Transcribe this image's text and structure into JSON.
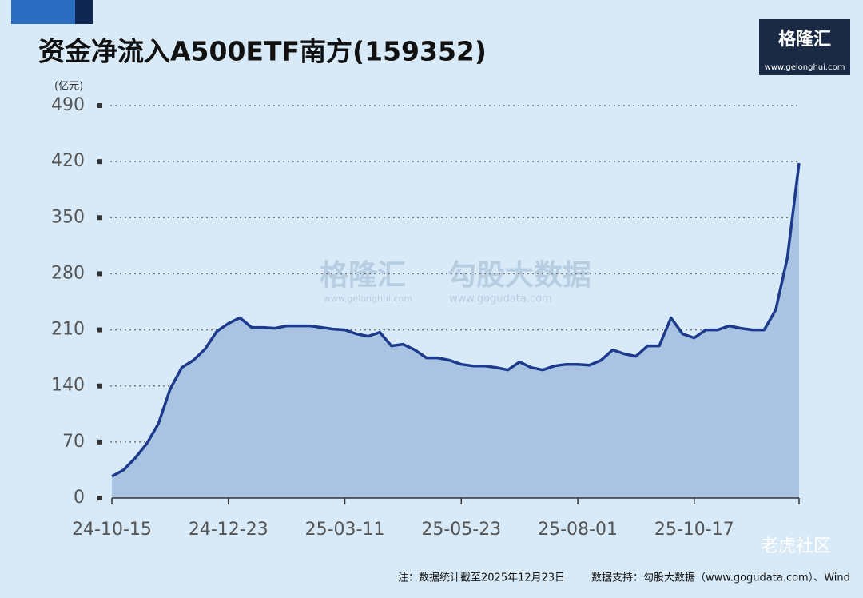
{
  "chart_data": {
    "type": "area",
    "title": "资金净流入A500ETF南方(159352)",
    "y_unit": "(亿元)",
    "categories": [
      "24-10-15",
      null,
      null,
      null,
      null,
      null,
      null,
      null,
      null,
      null,
      "24-12-23",
      null,
      null,
      null,
      null,
      null,
      null,
      null,
      null,
      null,
      "25-03-11",
      null,
      null,
      null,
      null,
      null,
      null,
      null,
      null,
      null,
      "25-05-23",
      null,
      null,
      null,
      null,
      null,
      null,
      null,
      null,
      null,
      "25-08-01",
      null,
      null,
      null,
      null,
      null,
      null,
      null,
      null,
      null,
      "25-10-17",
      null,
      null,
      null,
      null,
      null,
      null,
      null,
      null,
      null
    ],
    "values": [
      27,
      35,
      50,
      68,
      93,
      136,
      163,
      172,
      186,
      208,
      218,
      225,
      213,
      213,
      212,
      215,
      215,
      215,
      213,
      211,
      210,
      205,
      202,
      207,
      190,
      192,
      185,
      175,
      175,
      172,
      167,
      165,
      165,
      163,
      160,
      170,
      163,
      160,
      165,
      167,
      167,
      166,
      172,
      185,
      180,
      177,
      190,
      190,
      225,
      205,
      200,
      210,
      210,
      215,
      212,
      210,
      210,
      235,
      300,
      418
    ],
    "color": "#1d3a8c",
    "fill": "#a9c3e3",
    "ylim": [
      0,
      490
    ],
    "yticks": [
      0,
      70,
      140,
      210,
      280,
      350,
      420,
      490
    ],
    "grid": true,
    "note": "注：数据统计截至2025年12月23日",
    "source": "数据支持：勾股大数据（www.gogudata.com）、Wind",
    "logo": {
      "name": "格隆汇",
      "url": "www.gelonghui.com"
    },
    "watermark": {
      "brand1": "格隆汇",
      "url1": "www.gelonghui.com",
      "brand2": "勾股大数据",
      "url2": "www.gogudata.com"
    },
    "corner_mark": "老虎社区"
  }
}
